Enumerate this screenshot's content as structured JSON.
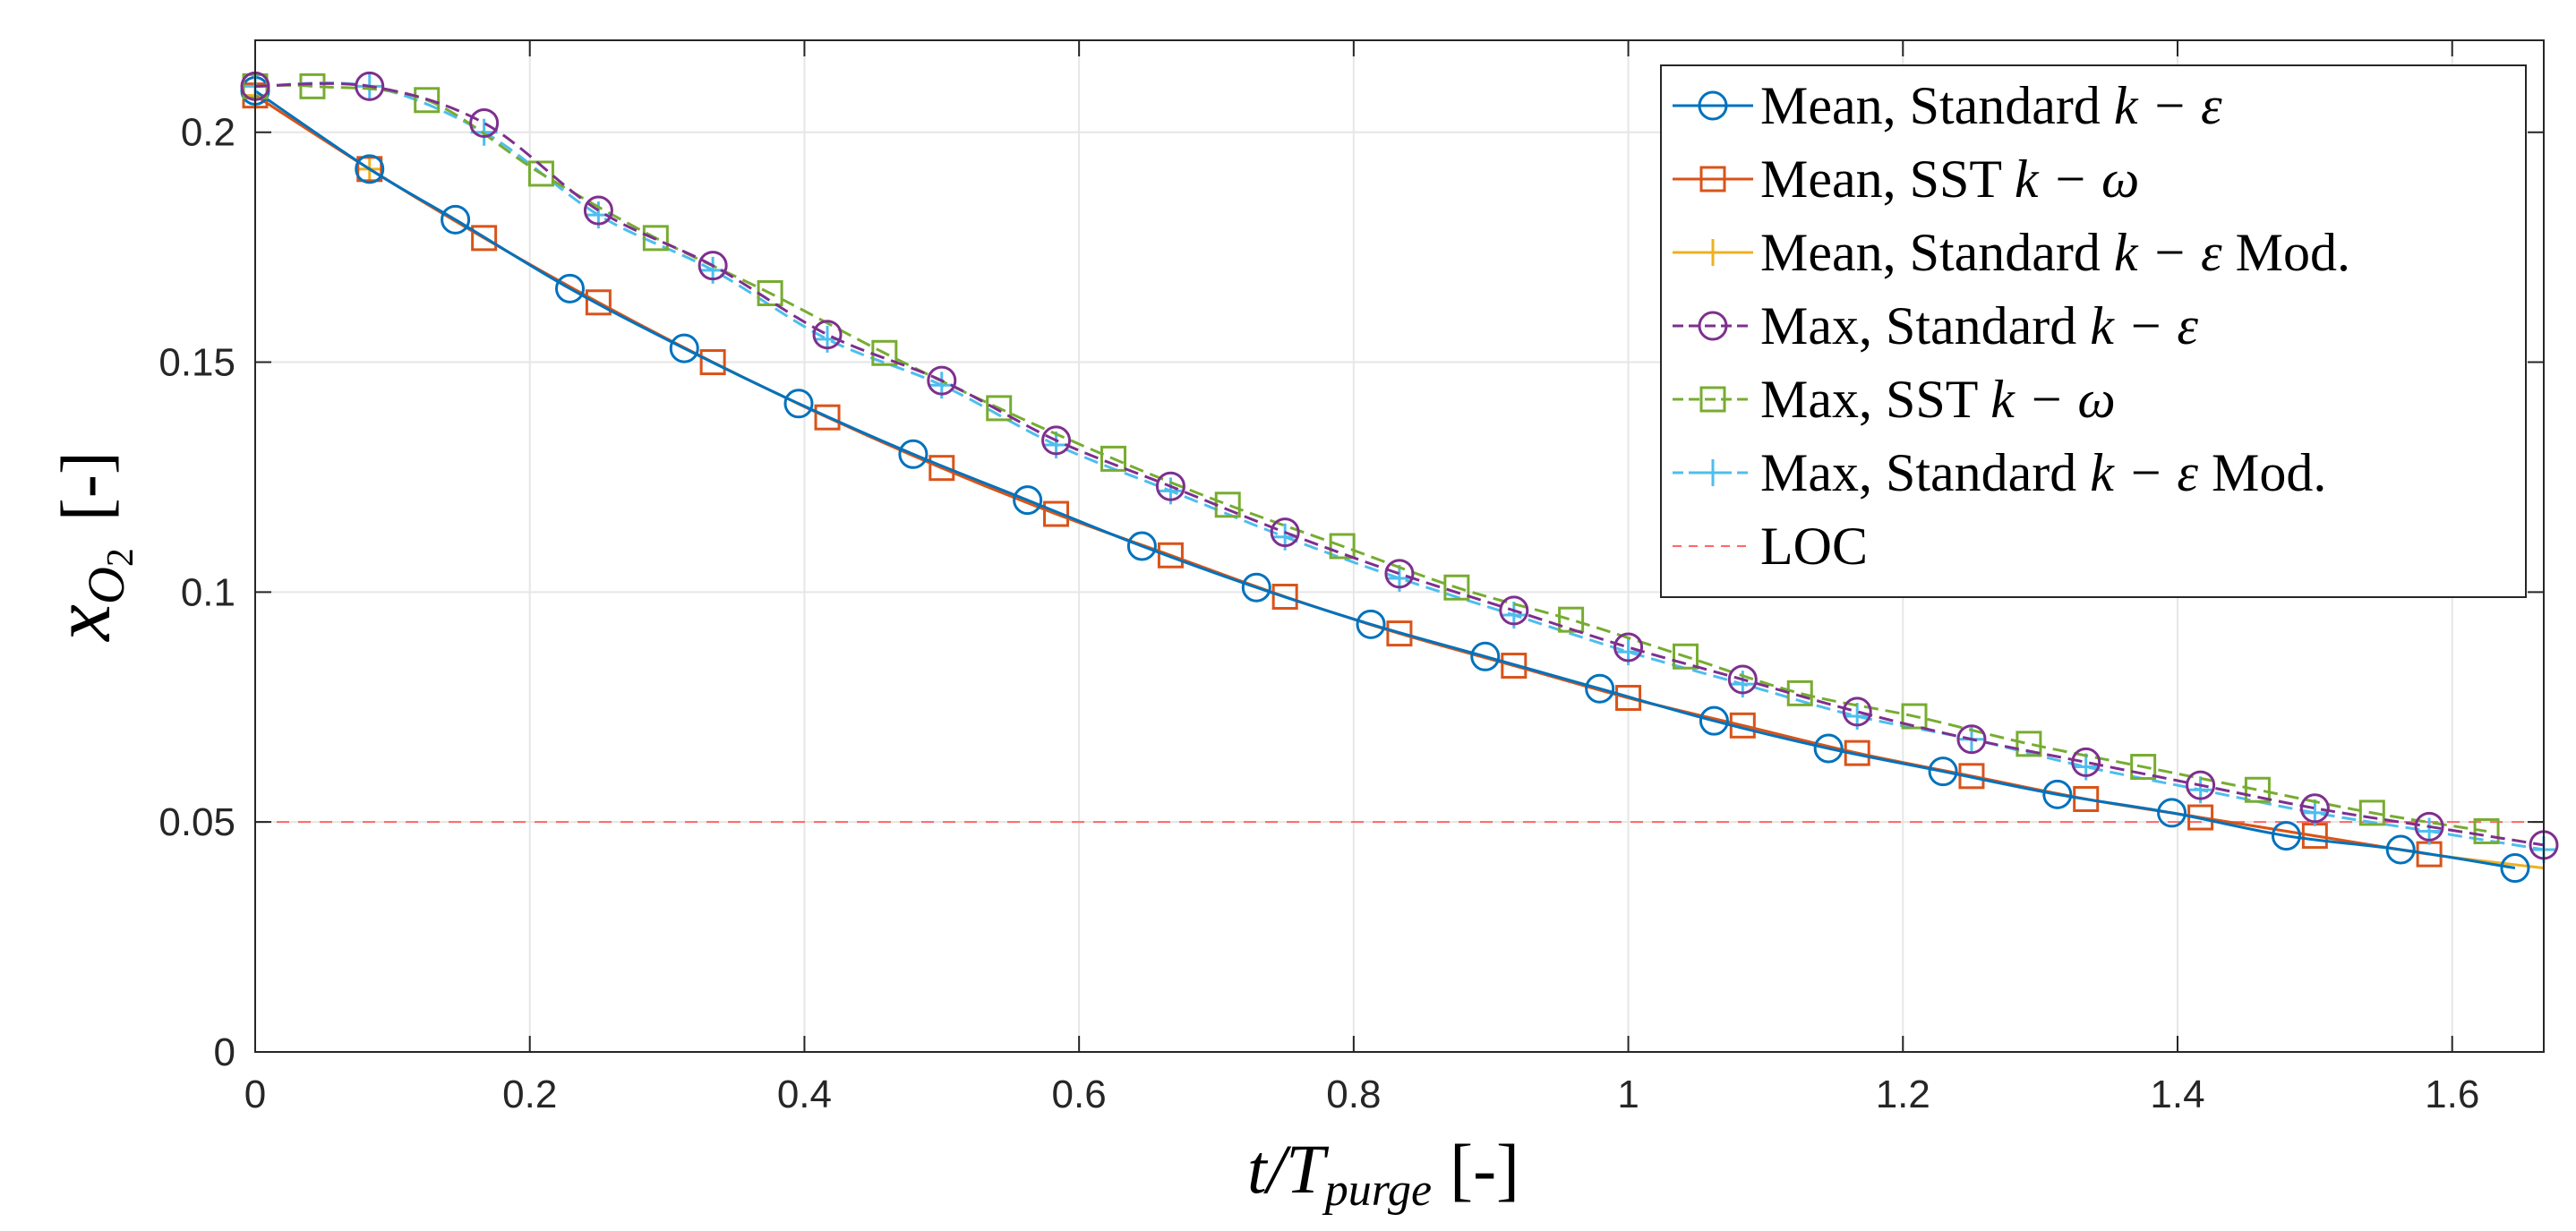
{
  "chart_data": {
    "type": "line",
    "xlabel": {
      "main": "t/T",
      "sub": "purge",
      "unit": "[-]"
    },
    "ylabel": {
      "main": "x",
      "sub": "O",
      "subsub": "2",
      "unit": "[-]"
    },
    "xlim": [
      0,
      1.6667
    ],
    "ylim": [
      0,
      0.22
    ],
    "xticks": [
      0,
      0.2,
      0.4,
      0.6,
      0.8,
      1,
      1.2,
      1.4,
      1.6
    ],
    "xtick_labels": [
      "0",
      "0.2",
      "0.4",
      "0.6",
      "0.8",
      "1",
      "1.2",
      "1.4",
      "1.6"
    ],
    "yticks": [
      0,
      0.05,
      0.1,
      0.15,
      0.2
    ],
    "ytick_labels": [
      "0",
      "0.05",
      "0.1",
      "0.15",
      "0.2"
    ],
    "grid": true,
    "legend_position": "top-right",
    "series": [
      {
        "name": "Mean, Standard k − ε",
        "legend_prefix": "Mean, Standard ",
        "legend_math": "k − ε",
        "legend_suffix": "",
        "color": "#0072BD",
        "marker": "circle",
        "linestyle": "solid",
        "x": [
          0,
          0.0833,
          0.1458,
          0.2292,
          0.3125,
          0.3958,
          0.4792,
          0.5625,
          0.6458,
          0.7292,
          0.8125,
          0.8958,
          0.9792,
          1.0625,
          1.1458,
          1.2292,
          1.3125,
          1.3958,
          1.4792,
          1.5625,
          1.6458
        ],
        "y": [
          0.209,
          0.192,
          0.181,
          0.166,
          0.153,
          0.141,
          0.13,
          0.12,
          0.11,
          0.101,
          0.093,
          0.086,
          0.079,
          0.072,
          0.066,
          0.061,
          0.056,
          0.052,
          0.047,
          0.044,
          0.04
        ]
      },
      {
        "name": "Mean, SST k − ω",
        "legend_prefix": "Mean, SST ",
        "legend_math": "k − ω",
        "legend_suffix": "",
        "color": "#D95319",
        "marker": "square",
        "linestyle": "solid",
        "x": [
          0,
          0.0833,
          0.1667,
          0.25,
          0.3333,
          0.4167,
          0.5,
          0.5833,
          0.6667,
          0.75,
          0.8333,
          0.9167,
          1.0,
          1.0833,
          1.1667,
          1.25,
          1.3333,
          1.4167,
          1.5,
          1.5833
        ],
        "y": [
          0.208,
          0.192,
          0.177,
          0.163,
          0.15,
          0.138,
          0.127,
          0.117,
          0.108,
          0.099,
          0.091,
          0.084,
          0.077,
          0.071,
          0.065,
          0.06,
          0.055,
          0.051,
          0.047,
          0.043
        ]
      },
      {
        "name": "Mean, Standard k − ε Mod.",
        "legend_prefix": "Mean, Standard ",
        "legend_math": "k − ε",
        "legend_suffix": " Mod.",
        "color": "#EDB120",
        "marker": "plus",
        "linestyle": "solid",
        "marker_points": [
          0,
          0.0833
        ],
        "x": [
          0,
          0.0833,
          0.1667,
          0.25,
          0.3333,
          0.4167,
          0.5,
          0.5833,
          0.6667,
          0.75,
          0.8333,
          0.9167,
          1.0,
          1.0833,
          1.1667,
          1.25,
          1.3333,
          1.4167,
          1.5,
          1.5833,
          1.6667
        ],
        "y": [
          0.208,
          0.192,
          0.177,
          0.163,
          0.15,
          0.138,
          0.127,
          0.117,
          0.108,
          0.099,
          0.091,
          0.084,
          0.077,
          0.071,
          0.065,
          0.06,
          0.055,
          0.051,
          0.047,
          0.043,
          0.04
        ]
      },
      {
        "name": "Max, Standard k − ε",
        "legend_prefix": "Max, Standard ",
        "legend_math": "k − ε",
        "legend_suffix": "",
        "color": "#7E2F8E",
        "marker": "circle",
        "linestyle": "dashed",
        "x": [
          0,
          0.0833,
          0.1667,
          0.25,
          0.3333,
          0.4167,
          0.5,
          0.5833,
          0.6667,
          0.75,
          0.8333,
          0.9167,
          1.0,
          1.0833,
          1.1667,
          1.25,
          1.3333,
          1.4167,
          1.5,
          1.5833,
          1.6667
        ],
        "y": [
          0.21,
          0.21,
          0.202,
          0.183,
          0.171,
          0.156,
          0.146,
          0.133,
          0.123,
          0.113,
          0.104,
          0.096,
          0.088,
          0.081,
          0.074,
          0.068,
          0.063,
          0.058,
          0.053,
          0.049,
          0.045
        ]
      },
      {
        "name": "Max, SST k − ω",
        "legend_prefix": "Max, SST ",
        "legend_math": "k − ω",
        "legend_suffix": "",
        "color": "#77AC30",
        "marker": "square",
        "linestyle": "dashed",
        "x": [
          0,
          0.0417,
          0.125,
          0.2083,
          0.2917,
          0.375,
          0.4583,
          0.5417,
          0.625,
          0.7083,
          0.7917,
          0.875,
          0.9583,
          1.0417,
          1.125,
          1.2083,
          1.2917,
          1.375,
          1.4583,
          1.5417,
          1.625
        ],
        "y": [
          0.21,
          0.21,
          0.207,
          0.191,
          0.177,
          0.165,
          0.152,
          0.14,
          0.129,
          0.119,
          0.11,
          0.101,
          0.094,
          0.086,
          0.078,
          0.073,
          0.067,
          0.062,
          0.057,
          0.052,
          0.048
        ]
      },
      {
        "name": "Max, Standard k − ε Mod.",
        "legend_prefix": "Max, Standard ",
        "legend_math": "k − ε",
        "legend_suffix": " Mod.",
        "color": "#4DBEEE",
        "marker": "plus",
        "linestyle": "dashed",
        "x": [
          0,
          0.0833,
          0.1667,
          0.25,
          0.3333,
          0.4167,
          0.5,
          0.5833,
          0.6667,
          0.75,
          0.8333,
          0.9167,
          1.0,
          1.0833,
          1.1667,
          1.25,
          1.3333,
          1.4167,
          1.5,
          1.5833,
          1.6667
        ],
        "y": [
          0.21,
          0.21,
          0.2,
          0.182,
          0.17,
          0.155,
          0.145,
          0.132,
          0.122,
          0.112,
          0.103,
          0.095,
          0.087,
          0.08,
          0.073,
          0.068,
          0.062,
          0.057,
          0.052,
          0.048,
          0.044
        ]
      },
      {
        "name": "LOC",
        "legend_prefix": "LOC",
        "legend_math": "",
        "legend_suffix": "",
        "color": "#FF6666",
        "marker": "none",
        "linestyle": "dashed",
        "x": [
          0,
          1.6667
        ],
        "y": [
          0.05,
          0.05
        ]
      }
    ]
  }
}
